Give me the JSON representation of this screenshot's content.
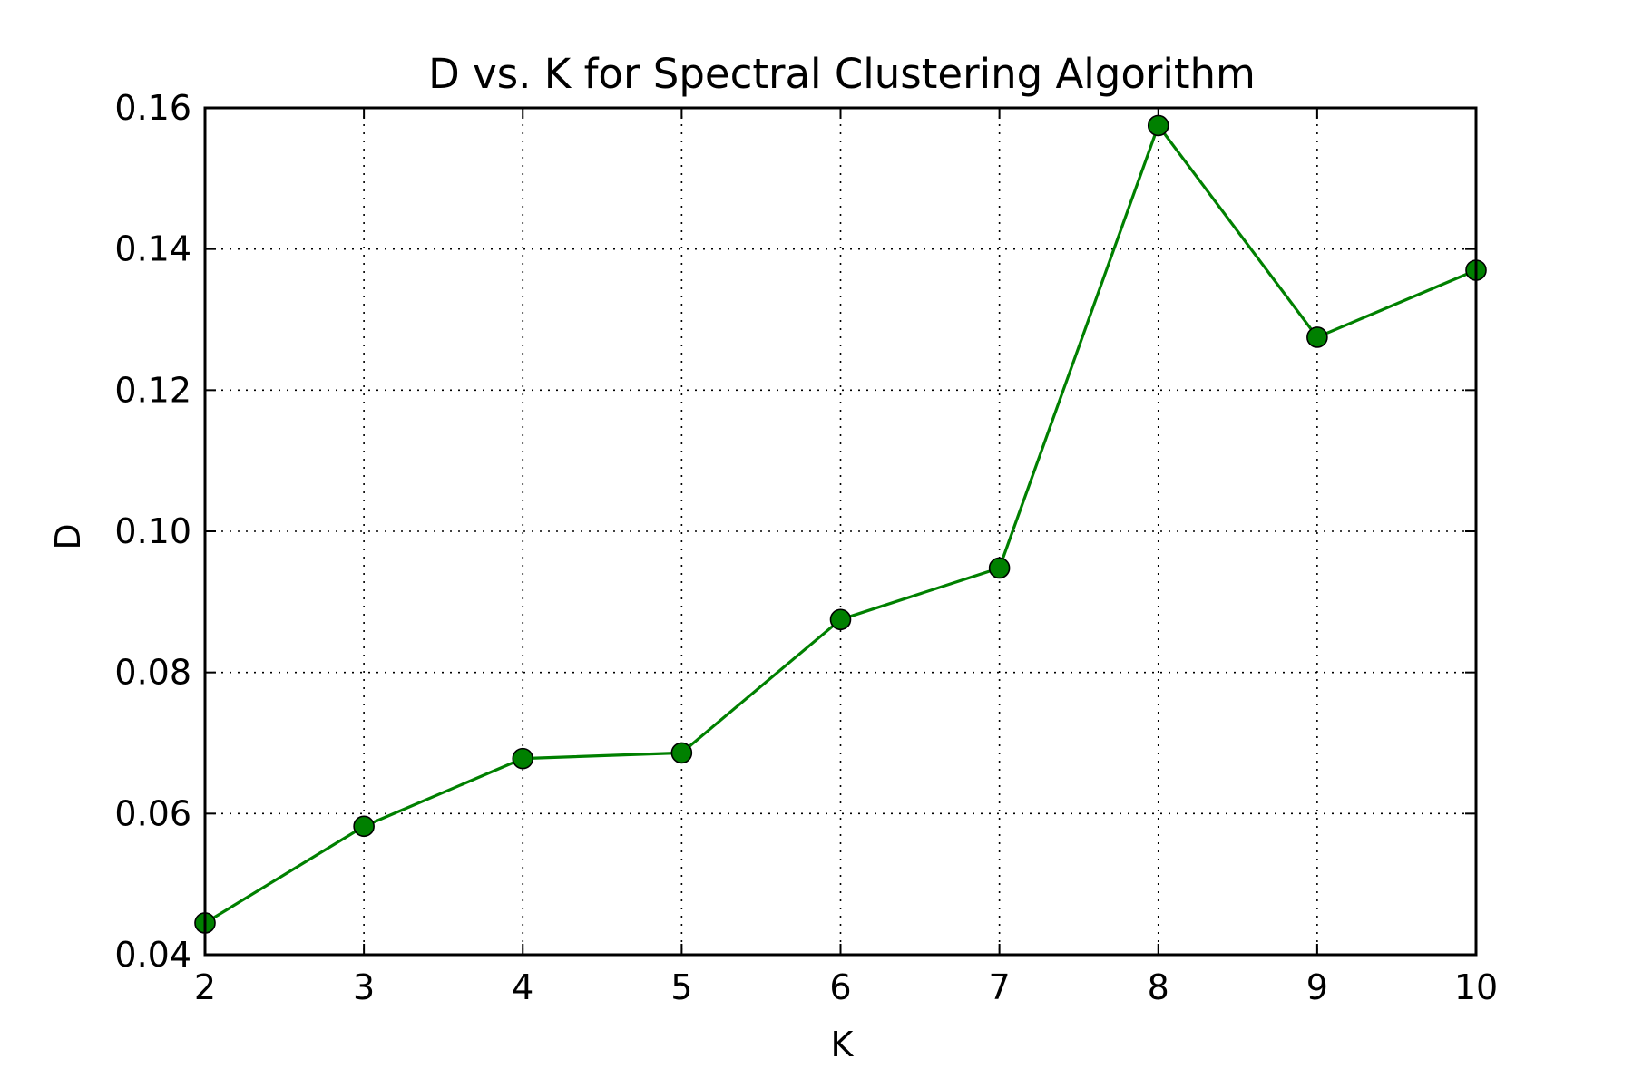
{
  "chart_data": {
    "type": "line",
    "title": "D vs. K for Spectral Clustering Algorithm",
    "xlabel": "K",
    "ylabel": "D",
    "xlim": [
      2,
      10
    ],
    "ylim": [
      0.04,
      0.16
    ],
    "xticks": [
      "2",
      "3",
      "4",
      "5",
      "6",
      "7",
      "8",
      "9",
      "10"
    ],
    "yticks": [
      "0.04",
      "0.06",
      "0.08",
      "0.10",
      "0.12",
      "0.14",
      "0.16"
    ],
    "grid": true,
    "series": [
      {
        "color": "#008000",
        "marker": "circle",
        "x": [
          2,
          3,
          4,
          5,
          6,
          7,
          8,
          9,
          10
        ],
        "y": [
          0.0445,
          0.0582,
          0.0678,
          0.0686,
          0.0875,
          0.0948,
          0.1575,
          0.1275,
          0.137
        ]
      }
    ]
  }
}
